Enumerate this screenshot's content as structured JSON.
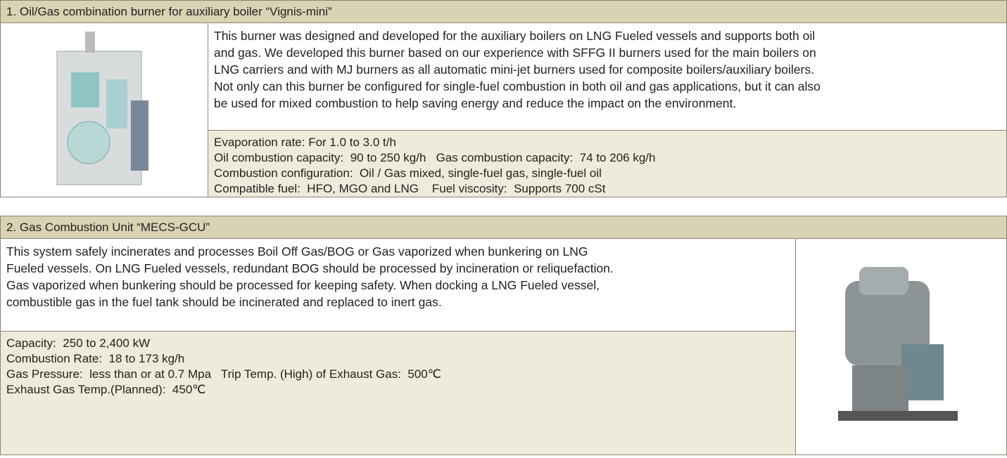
{
  "sections": [
    {
      "header": "1. Oil/Gas combination burner for auxiliary boiler “Vignis-mini”",
      "description": [
        "This burner was designed and developed for the auxiliary boilers on LNG Fueled vessels and supports both oil",
        "and gas. We developed this burner based on our experience with SFFG II burners used for the main boilers on",
        "LNG carriers and with MJ burners as all automatic mini-jet burners used for composite boilers/auxiliary boilers.",
        "Not only can this burner be configured for single-fuel combustion in both oil and gas applications, but it can also",
        "be used for mixed combustion to help saving energy and reduce the impact on the environment."
      ],
      "specs": [
        "Evaporation rate: For 1.0 to 3.0 t/h",
        "Oil combustion capacity:  90 to 250 kg/h   Gas combustion capacity:  74 to 206 kg/h",
        "Combustion configuration:  Oil / Gas mixed, single-fuel gas, single-fuel oil",
        "Compatible fuel:  HFO, MGO and LNG    Fuel viscosity:  Supports 700 cSt"
      ]
    },
    {
      "header": "2. Gas Combustion Unit “MECS-GCU”",
      "description": [
        "This system safely incinerates and processes Boil Off Gas/BOG or Gas vaporized when bunkering on LNG",
        "Fueled vessels. On LNG Fueled vessels, redundant BOG should be processed by incineration or reliquefaction.",
        "Gas vaporized when bunkering should be processed for keeping safety. When docking a LNG Fueled vessel,",
        "combustible gas in the fuel tank should be incinerated and replaced to inert gas."
      ],
      "specs": [
        "Capacity:  250 to 2,400 kW",
        "Combustion Rate:  18 to 173 kg/h",
        "Gas Pressure:  less than or at 0.7 Mpa   Trip Temp. (High) of Exhaust Gas:  500℃",
        "Exhaust Gas Temp.(Planned):  450℃"
      ]
    }
  ]
}
